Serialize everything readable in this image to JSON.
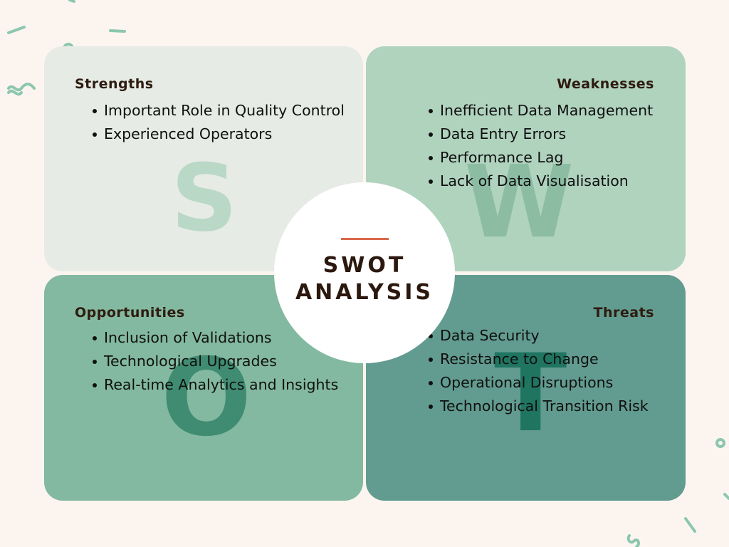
{
  "center": {
    "title_line1": "SWOT",
    "title_line2": "ANALYSIS"
  },
  "strengths": {
    "title": "Strengths",
    "letter": "S",
    "items": [
      "Important Role in Quality Control",
      "Experienced Operators"
    ]
  },
  "weaknesses": {
    "title": "Weaknesses",
    "letter": "W",
    "items": [
      "Inefficient Data Management",
      "Data Entry Errors",
      "Performance Lag",
      "Lack of Data Visualisation"
    ]
  },
  "opportunities": {
    "title": "Opportunities",
    "letter": "O",
    "items": [
      "Inclusion of Validations",
      "Technological Upgrades",
      "Real-time Analytics and Insights"
    ]
  },
  "threats": {
    "title": "Threats",
    "letter": "T",
    "items": [
      "Data Security",
      "Resistance to Change",
      "Operational Disruptions",
      "Technological Transition Risk"
    ]
  },
  "colors": {
    "background": "#fcf5ef",
    "strengths_bg": "#e6ebe5",
    "weaknesses_bg": "#b0d3be",
    "opportunities_bg": "#83b9a0",
    "threats_bg": "#629b8f",
    "accent_line": "#d9694c",
    "heading_text": "#2e1b10"
  }
}
